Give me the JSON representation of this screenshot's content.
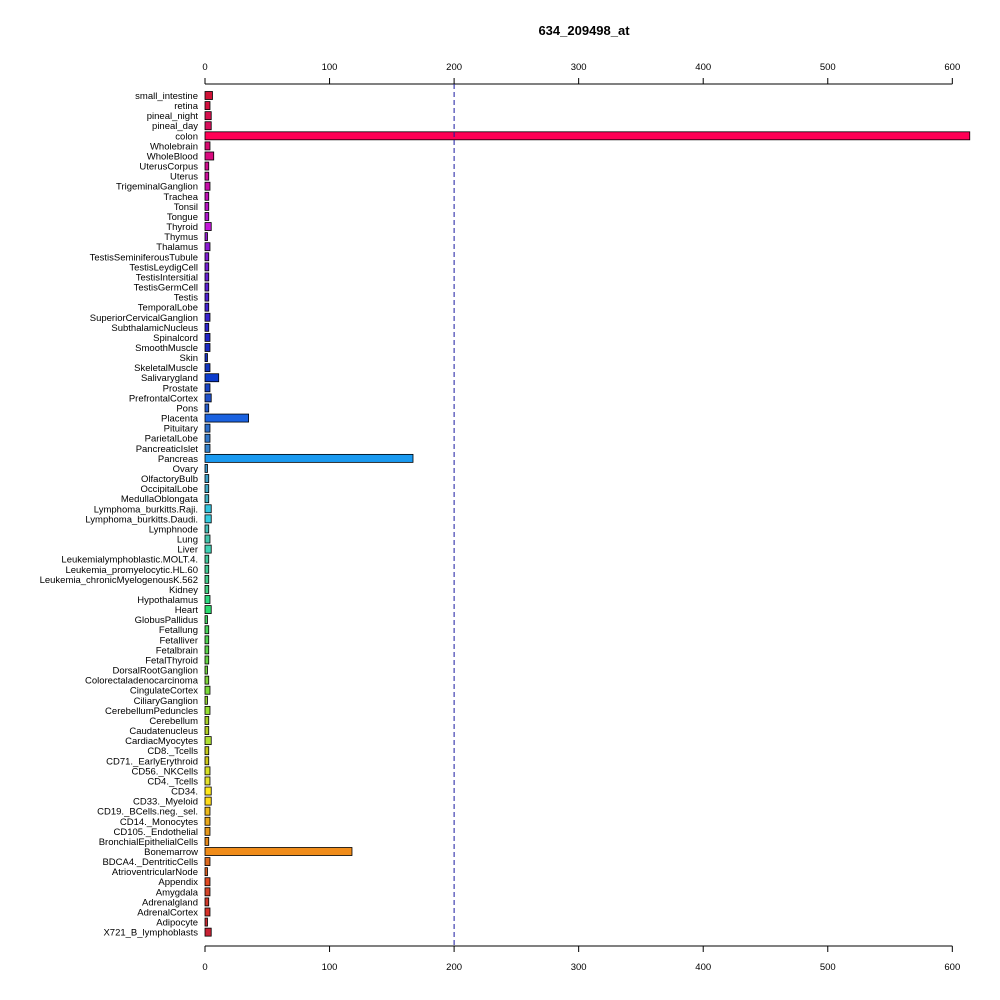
{
  "chart_data": {
    "type": "bar",
    "orientation": "horizontal",
    "title": "634_209498_at",
    "xlabel": "",
    "ylabel": "",
    "xlim": [
      0,
      615
    ],
    "xticks": [
      0,
      100,
      200,
      300,
      400,
      500,
      600
    ],
    "reference_line": 200,
    "grid": false,
    "categories": [
      "small_intestine",
      "retina",
      "pineal_night",
      "pineal_day",
      "colon",
      "Wholebrain",
      "WholeBlood",
      "UterusCorpus",
      "Uterus",
      "TrigeminalGanglion",
      "Trachea",
      "Tonsil",
      "Tongue",
      "Thyroid",
      "Thymus",
      "Thalamus",
      "TestisSeminiferousTubule",
      "TestisLeydigCell",
      "TestisIntersitial",
      "TestisGermCell",
      "Testis",
      "TemporalLobe",
      "SuperiorCervicalGanglion",
      "SubthalamicNucleus",
      "Spinalcord",
      "SmoothMuscle",
      "Skin",
      "SkeletalMuscle",
      "Salivarygland",
      "Prostate",
      "PrefrontalCortex",
      "Pons",
      "Placenta",
      "Pituitary",
      "ParietalLobe",
      "PancreaticIslet",
      "Pancreas",
      "Ovary",
      "OlfactoryBulb",
      "OccipitalLobe",
      "MedullaOblongata",
      "Lymphoma_burkitts.Raji.",
      "Lymphoma_burkitts.Daudi.",
      "Lymphnode",
      "Lung",
      "Liver",
      "Leukemialymphoblastic.MOLT.4.",
      "Leukemia_promyelocytic.HL.60",
      "Leukemia_chronicMyelogenousK.562",
      "Kidney",
      "Hypothalamus",
      "Heart",
      "GlobusPallidus",
      "Fetallung",
      "Fetalliver",
      "Fetalbrain",
      "FetalThyroid",
      "DorsalRootGanglion",
      "Colorectaladenocarcinoma",
      "CingulateCortex",
      "CiliaryGanglion",
      "CerebellumPeduncles",
      "Cerebellum",
      "Caudatenucleus",
      "CardiacMyocytes",
      "CD8._Tcells",
      "CD71._EarlyErythroid",
      "CD56._NKCells",
      "CD4._Tcells",
      "CD34.",
      "CD33._Myeloid",
      "CD19._BCells.neg._sel.",
      "CD14._Monocytes",
      "CD105._Endothelial",
      "BronchialEpithelialCells",
      "Bonemarrow",
      "BDCA4._DentriticCells",
      "AtrioventricularNode",
      "Appendix",
      "Amygdala",
      "Adrenalgland",
      "AdrenalCortex",
      "Adipocyte",
      "X721_B_lymphoblasts"
    ],
    "values": [
      6,
      4,
      5,
      5,
      614,
      4,
      7,
      3,
      3,
      4,
      3,
      3,
      3,
      5,
      2,
      4,
      3,
      3,
      3,
      3,
      3,
      3,
      4,
      3,
      4,
      4,
      2,
      4,
      11,
      4,
      5,
      3,
      35,
      4,
      4,
      4,
      167,
      2,
      3,
      3,
      3,
      5,
      5,
      3,
      4,
      5,
      3,
      3,
      3,
      3,
      4,
      5,
      2,
      3,
      3,
      3,
      3,
      2,
      3,
      4,
      2,
      4,
      3,
      3,
      5,
      3,
      3,
      4,
      4,
      5,
      5,
      4,
      4,
      4,
      3,
      118,
      4,
      2,
      4,
      4,
      3,
      4,
      2,
      5
    ],
    "colors": [
      "#d01236",
      "#d3103f",
      "#d60f4d",
      "#d80e5b",
      "#ff0055",
      "#d80b70",
      "#d90a7e",
      "#cf0c8d",
      "#cc0d9a",
      "#c70ea8",
      "#c010b5",
      "#b712c2",
      "#ad14cc",
      "#c418d8",
      "#931ad0",
      "#8a1bd2",
      "#7e1cd2",
      "#731dd3",
      "#671ed3",
      "#5b1fd3",
      "#4f20d2",
      "#4321d1",
      "#3822cf",
      "#2d23cc",
      "#2124c8",
      "#1a2ac4",
      "#1530c0",
      "#1236bd",
      "#0c3ccc",
      "#1844c4",
      "#1e4fc8",
      "#2359c8",
      "#1a62e0",
      "#2c6dc9",
      "#3178ca",
      "#3583cb",
      "#1a9af0",
      "#3b97c9",
      "#3ea1c8",
      "#41aac6",
      "#43b3c4",
      "#33c6e0",
      "#35cde0",
      "#45bfb7",
      "#44c6ad",
      "#3fd3b5",
      "#43c99b",
      "#43cc93",
      "#44ce8b",
      "#44d082",
      "#2fd980",
      "#2cdc6f",
      "#44d463",
      "#4ad45a",
      "#51d452",
      "#5bd44b",
      "#66d445",
      "#72d43f",
      "#7ed33a",
      "#7ad93a",
      "#93d22f",
      "#96df33",
      "#a7d029",
      "#b1ce25",
      "#b0e033",
      "#c4ca1c",
      "#cdc818",
      "#d6e024",
      "#e3e02a",
      "#ffe81a",
      "#ffdc1a",
      "#ecb91b",
      "#e9a81b",
      "#e6981c",
      "#e3881d",
      "#f08c1a",
      "#dd6a20",
      "#d95d22",
      "#e04a22",
      "#d3452a",
      "#cf3a2c",
      "#d6322a",
      "#c92a32",
      "#c72234"
    ]
  }
}
